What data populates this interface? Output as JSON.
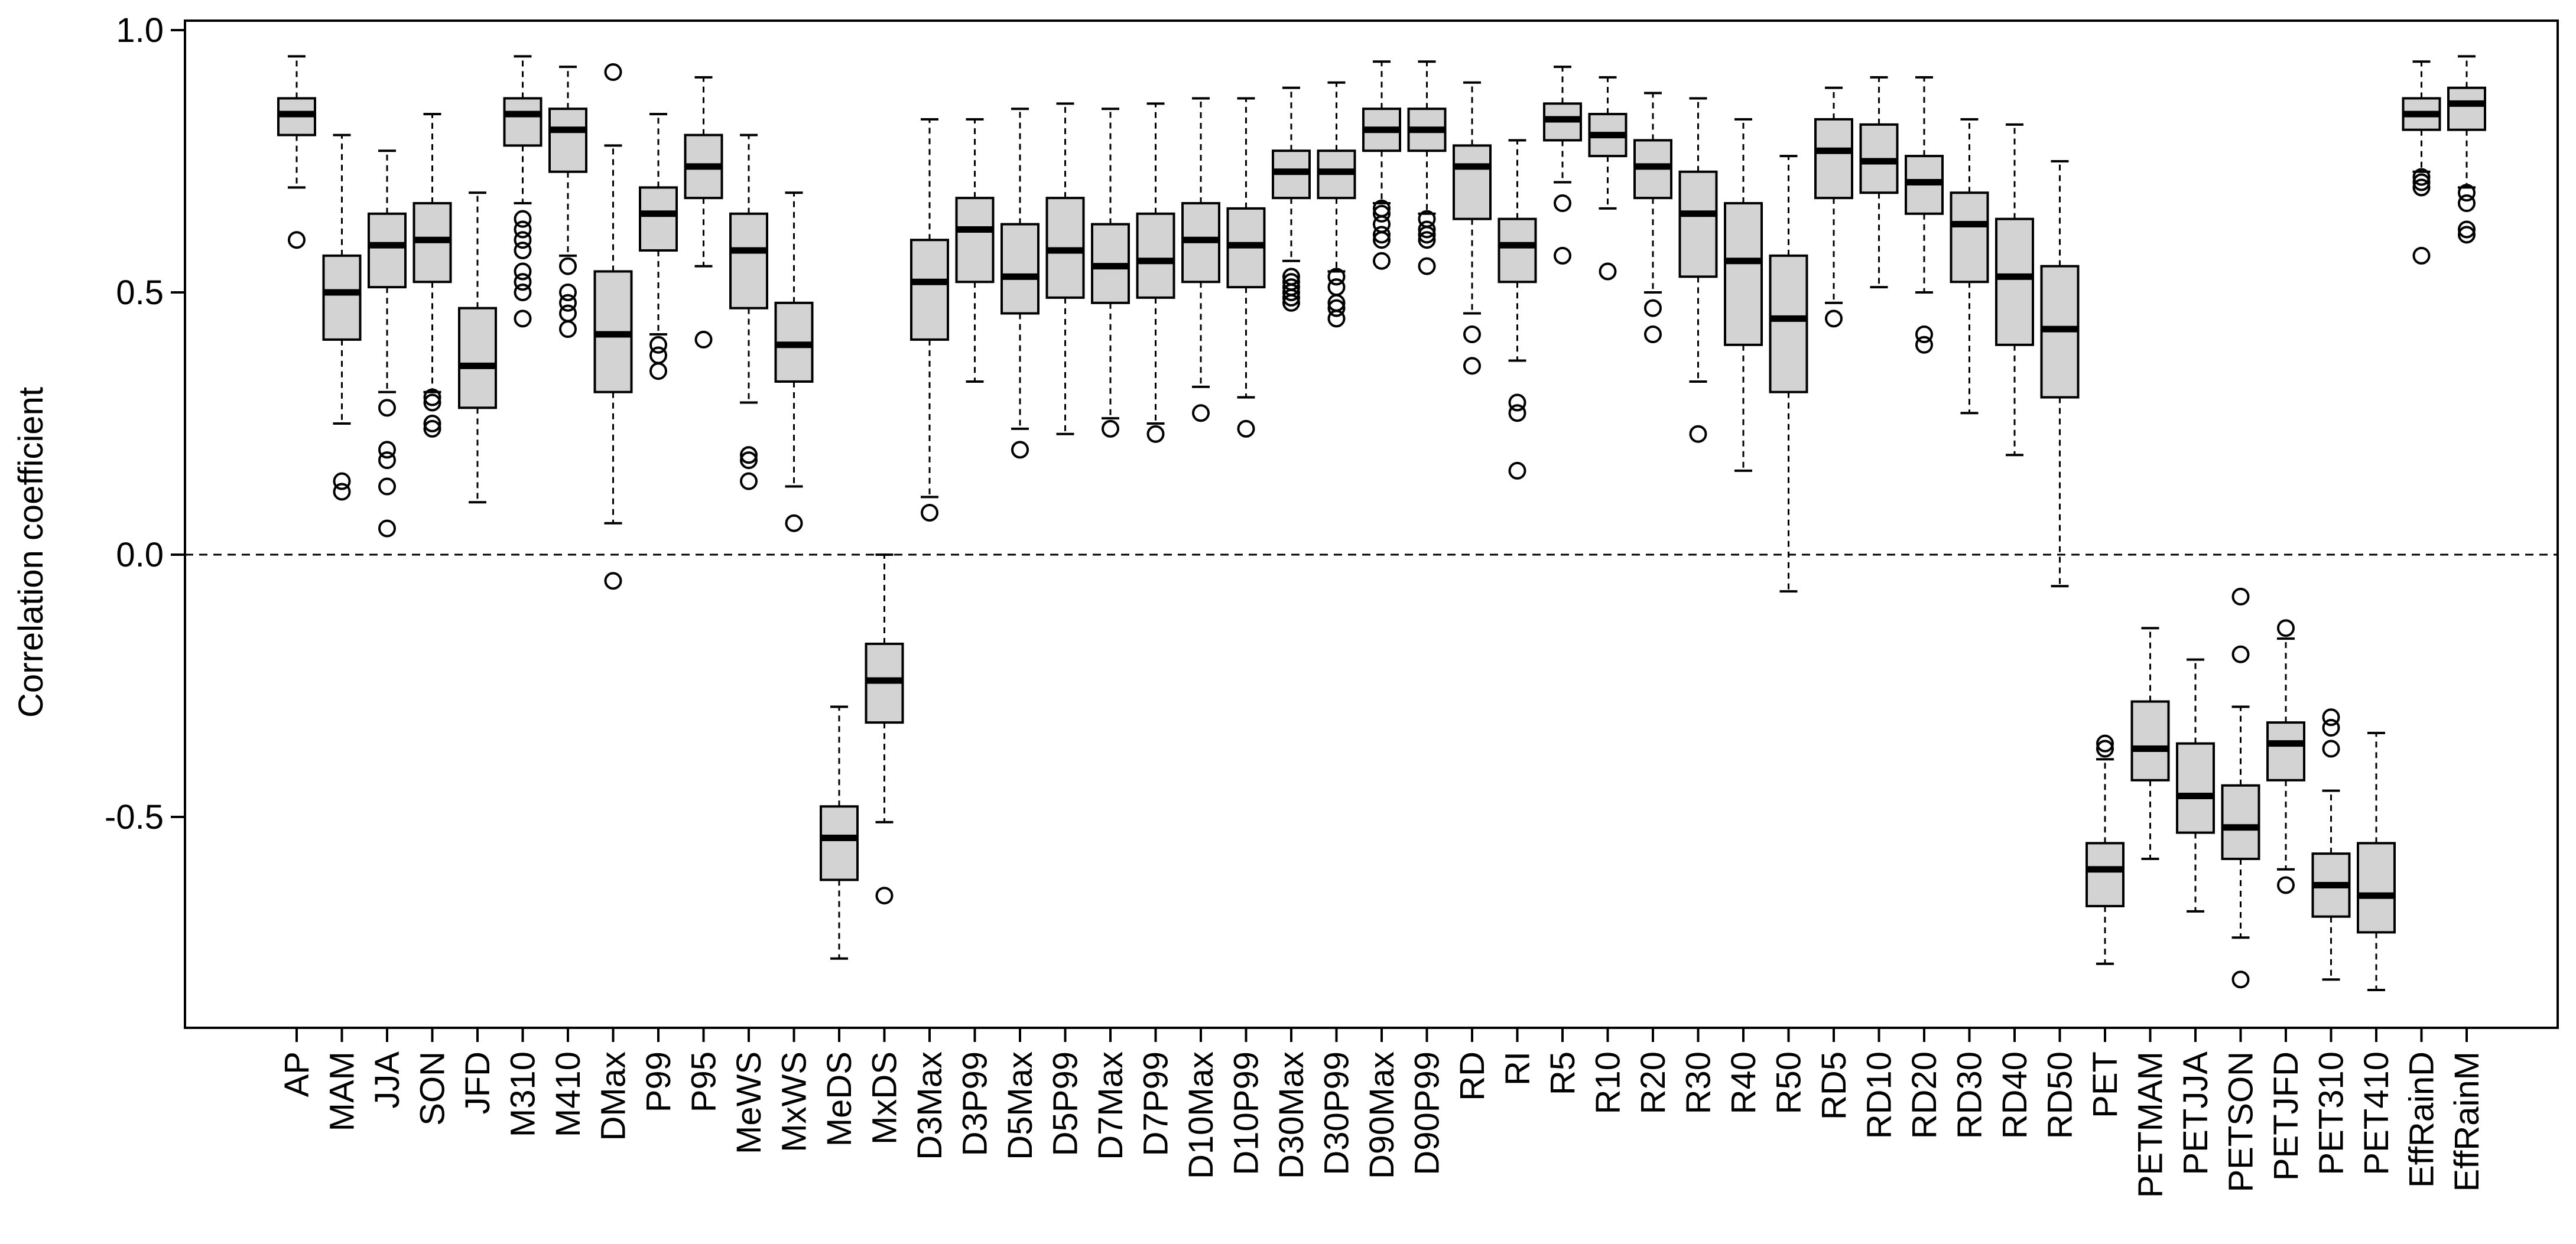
{
  "chart_data": {
    "type": "boxplot",
    "title": "",
    "xlabel": "",
    "ylabel": "Correlation coefficient",
    "ylim": [
      -0.88,
      1.02
    ],
    "yticks": [
      -0.5,
      0.0,
      0.5,
      1.0
    ],
    "ytick_labels": [
      "-0.5",
      "0.0",
      "0.5",
      "1.0"
    ],
    "reference_line": 0.0,
    "box_fill": "#d3d3d3",
    "boxes": [
      {
        "label": "AP",
        "whisker_low": 0.7,
        "q1": 0.8,
        "median": 0.84,
        "q3": 0.87,
        "whisker_high": 0.95,
        "outliers": [
          0.6
        ]
      },
      {
        "label": "MAM",
        "whisker_low": 0.25,
        "q1": 0.41,
        "median": 0.5,
        "q3": 0.57,
        "whisker_high": 0.8,
        "outliers": [
          0.14,
          0.12
        ]
      },
      {
        "label": "JJA",
        "whisker_low": 0.31,
        "q1": 0.51,
        "median": 0.59,
        "q3": 0.65,
        "whisker_high": 0.77,
        "outliers": [
          0.28,
          0.2,
          0.18,
          0.13,
          0.05
        ]
      },
      {
        "label": "SON",
        "whisker_low": 0.31,
        "q1": 0.52,
        "median": 0.6,
        "q3": 0.67,
        "whisker_high": 0.84,
        "outliers": [
          0.3,
          0.29,
          0.25,
          0.24
        ]
      },
      {
        "label": "JFD",
        "whisker_low": 0.1,
        "q1": 0.28,
        "median": 0.36,
        "q3": 0.47,
        "whisker_high": 0.69,
        "outliers": []
      },
      {
        "label": "M310",
        "whisker_low": 0.67,
        "q1": 0.78,
        "median": 0.84,
        "q3": 0.87,
        "whisker_high": 0.95,
        "outliers": [
          0.64,
          0.62,
          0.6,
          0.58,
          0.54,
          0.52,
          0.5,
          0.45
        ]
      },
      {
        "label": "M410",
        "whisker_low": 0.57,
        "q1": 0.73,
        "median": 0.81,
        "q3": 0.85,
        "whisker_high": 0.93,
        "outliers": [
          0.55,
          0.5,
          0.48,
          0.46,
          0.43
        ]
      },
      {
        "label": "DMax",
        "whisker_low": 0.06,
        "q1": 0.31,
        "median": 0.42,
        "q3": 0.54,
        "whisker_high": 0.78,
        "outliers": [
          0.92,
          -0.05
        ]
      },
      {
        "label": "P99",
        "whisker_low": 0.42,
        "q1": 0.58,
        "median": 0.65,
        "q3": 0.7,
        "whisker_high": 0.84,
        "outliers": [
          0.4,
          0.38,
          0.35
        ]
      },
      {
        "label": "P95",
        "whisker_low": 0.55,
        "q1": 0.68,
        "median": 0.74,
        "q3": 0.8,
        "whisker_high": 0.91,
        "outliers": [
          0.41
        ]
      },
      {
        "label": "MeWS",
        "whisker_low": 0.29,
        "q1": 0.47,
        "median": 0.58,
        "q3": 0.65,
        "whisker_high": 0.8,
        "outliers": [
          0.19,
          0.18,
          0.14
        ]
      },
      {
        "label": "MxWS",
        "whisker_low": 0.13,
        "q1": 0.33,
        "median": 0.4,
        "q3": 0.48,
        "whisker_high": 0.69,
        "outliers": [
          0.06
        ]
      },
      {
        "label": "MeDS",
        "whisker_low": -0.77,
        "q1": -0.62,
        "median": -0.54,
        "q3": -0.48,
        "whisker_high": -0.29,
        "outliers": []
      },
      {
        "label": "MxDS",
        "whisker_low": -0.51,
        "q1": -0.32,
        "median": -0.24,
        "q3": -0.17,
        "whisker_high": 0.0,
        "outliers": [
          -0.65
        ]
      },
      {
        "label": "D3Max",
        "whisker_low": 0.11,
        "q1": 0.41,
        "median": 0.52,
        "q3": 0.6,
        "whisker_high": 0.83,
        "outliers": [
          0.08
        ]
      },
      {
        "label": "D3P99",
        "whisker_low": 0.33,
        "q1": 0.52,
        "median": 0.62,
        "q3": 0.68,
        "whisker_high": 0.83,
        "outliers": []
      },
      {
        "label": "D5Max",
        "whisker_low": 0.24,
        "q1": 0.46,
        "median": 0.53,
        "q3": 0.63,
        "whisker_high": 0.85,
        "outliers": [
          0.2
        ]
      },
      {
        "label": "D5P99",
        "whisker_low": 0.23,
        "q1": 0.49,
        "median": 0.58,
        "q3": 0.68,
        "whisker_high": 0.86,
        "outliers": []
      },
      {
        "label": "D7Max",
        "whisker_low": 0.26,
        "q1": 0.48,
        "median": 0.55,
        "q3": 0.63,
        "whisker_high": 0.85,
        "outliers": [
          0.24
        ]
      },
      {
        "label": "D7P99",
        "whisker_low": 0.25,
        "q1": 0.49,
        "median": 0.56,
        "q3": 0.65,
        "whisker_high": 0.86,
        "outliers": [
          0.23
        ]
      },
      {
        "label": "D10Max",
        "whisker_low": 0.32,
        "q1": 0.52,
        "median": 0.6,
        "q3": 0.67,
        "whisker_high": 0.87,
        "outliers": [
          0.27
        ]
      },
      {
        "label": "D10P99",
        "whisker_low": 0.3,
        "q1": 0.51,
        "median": 0.59,
        "q3": 0.66,
        "whisker_high": 0.87,
        "outliers": [
          0.24
        ]
      },
      {
        "label": "D30Max",
        "whisker_low": 0.56,
        "q1": 0.68,
        "median": 0.73,
        "q3": 0.77,
        "whisker_high": 0.89,
        "outliers": [
          0.53,
          0.52,
          0.51,
          0.5,
          0.49,
          0.48
        ]
      },
      {
        "label": "D30P99",
        "whisker_low": 0.54,
        "q1": 0.68,
        "median": 0.73,
        "q3": 0.77,
        "whisker_high": 0.9,
        "outliers": [
          0.53,
          0.51,
          0.48,
          0.47,
          0.45
        ]
      },
      {
        "label": "D90Max",
        "whisker_low": 0.67,
        "q1": 0.77,
        "median": 0.81,
        "q3": 0.85,
        "whisker_high": 0.94,
        "outliers": [
          0.66,
          0.65,
          0.63,
          0.61,
          0.6,
          0.56
        ]
      },
      {
        "label": "D90P99",
        "whisker_low": 0.65,
        "q1": 0.77,
        "median": 0.81,
        "q3": 0.85,
        "whisker_high": 0.94,
        "outliers": [
          0.64,
          0.62,
          0.61,
          0.6,
          0.55
        ]
      },
      {
        "label": "RD",
        "whisker_low": 0.46,
        "q1": 0.64,
        "median": 0.74,
        "q3": 0.78,
        "whisker_high": 0.9,
        "outliers": [
          0.42,
          0.36
        ]
      },
      {
        "label": "RI",
        "whisker_low": 0.37,
        "q1": 0.52,
        "median": 0.59,
        "q3": 0.64,
        "whisker_high": 0.79,
        "outliers": [
          0.29,
          0.27,
          0.16
        ]
      },
      {
        "label": "R5",
        "whisker_low": 0.71,
        "q1": 0.79,
        "median": 0.83,
        "q3": 0.86,
        "whisker_high": 0.93,
        "outliers": [
          0.67,
          0.57
        ]
      },
      {
        "label": "R10",
        "whisker_low": 0.66,
        "q1": 0.76,
        "median": 0.8,
        "q3": 0.84,
        "whisker_high": 0.91,
        "outliers": [
          0.54
        ]
      },
      {
        "label": "R20",
        "whisker_low": 0.5,
        "q1": 0.68,
        "median": 0.74,
        "q3": 0.79,
        "whisker_high": 0.88,
        "outliers": [
          0.47,
          0.42
        ]
      },
      {
        "label": "R30",
        "whisker_low": 0.33,
        "q1": 0.53,
        "median": 0.65,
        "q3": 0.73,
        "whisker_high": 0.87,
        "outliers": [
          0.23
        ]
      },
      {
        "label": "R40",
        "whisker_low": 0.16,
        "q1": 0.4,
        "median": 0.56,
        "q3": 0.67,
        "whisker_high": 0.83,
        "outliers": []
      },
      {
        "label": "R50",
        "whisker_low": -0.07,
        "q1": 0.31,
        "median": 0.45,
        "q3": 0.57,
        "whisker_high": 0.76,
        "outliers": []
      },
      {
        "label": "RD5",
        "whisker_low": 0.48,
        "q1": 0.68,
        "median": 0.77,
        "q3": 0.83,
        "whisker_high": 0.89,
        "outliers": [
          0.45
        ]
      },
      {
        "label": "RD10",
        "whisker_low": 0.51,
        "q1": 0.69,
        "median": 0.75,
        "q3": 0.82,
        "whisker_high": 0.91,
        "outliers": []
      },
      {
        "label": "RD20",
        "whisker_low": 0.5,
        "q1": 0.65,
        "median": 0.71,
        "q3": 0.76,
        "whisker_high": 0.91,
        "outliers": [
          0.42,
          0.4
        ]
      },
      {
        "label": "RD30",
        "whisker_low": 0.27,
        "q1": 0.52,
        "median": 0.63,
        "q3": 0.69,
        "whisker_high": 0.83,
        "outliers": []
      },
      {
        "label": "RD40",
        "whisker_low": 0.19,
        "q1": 0.4,
        "median": 0.53,
        "q3": 0.64,
        "whisker_high": 0.82,
        "outliers": []
      },
      {
        "label": "RD50",
        "whisker_low": -0.06,
        "q1": 0.3,
        "median": 0.43,
        "q3": 0.55,
        "whisker_high": 0.75,
        "outliers": []
      },
      {
        "label": "PET",
        "whisker_low": -0.78,
        "q1": -0.67,
        "median": -0.6,
        "q3": -0.55,
        "whisker_high": -0.39,
        "outliers": [
          -0.36,
          -0.37
        ]
      },
      {
        "label": "PETMAM",
        "whisker_low": -0.58,
        "q1": -0.43,
        "median": -0.37,
        "q3": -0.28,
        "whisker_high": -0.14,
        "outliers": []
      },
      {
        "label": "PETJJA",
        "whisker_low": -0.68,
        "q1": -0.53,
        "median": -0.46,
        "q3": -0.36,
        "whisker_high": -0.2,
        "outliers": []
      },
      {
        "label": "PETSON",
        "whisker_low": -0.73,
        "q1": -0.58,
        "median": -0.52,
        "q3": -0.44,
        "whisker_high": -0.29,
        "outliers": [
          -0.08,
          -0.19,
          -0.81
        ]
      },
      {
        "label": "PETJFD",
        "whisker_low": -0.6,
        "q1": -0.43,
        "median": -0.36,
        "q3": -0.32,
        "whisker_high": -0.16,
        "outliers": [
          -0.14,
          -0.63
        ]
      },
      {
        "label": "PET310",
        "whisker_low": -0.81,
        "q1": -0.69,
        "median": -0.63,
        "q3": -0.57,
        "whisker_high": -0.45,
        "outliers": [
          -0.31,
          -0.33,
          -0.37
        ]
      },
      {
        "label": "PET410",
        "whisker_low": -0.83,
        "q1": -0.72,
        "median": -0.65,
        "q3": -0.55,
        "whisker_high": -0.34,
        "outliers": []
      },
      {
        "label": "EffRainD",
        "whisker_low": 0.73,
        "q1": 0.81,
        "median": 0.84,
        "q3": 0.87,
        "whisker_high": 0.94,
        "outliers": [
          0.72,
          0.71,
          0.7,
          0.57
        ]
      },
      {
        "label": "EffRainM",
        "whisker_low": 0.7,
        "q1": 0.81,
        "median": 0.86,
        "q3": 0.89,
        "whisker_high": 0.95,
        "outliers": [
          0.69,
          0.67,
          0.61,
          0.62
        ]
      }
    ]
  }
}
